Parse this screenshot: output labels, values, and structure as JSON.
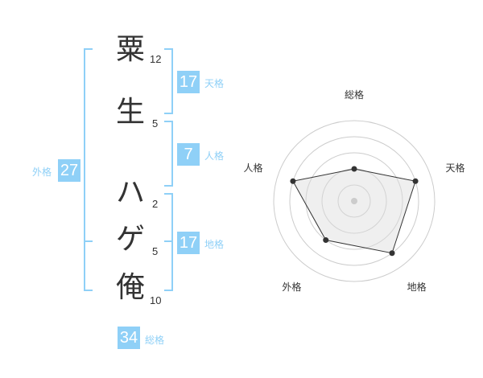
{
  "name": {
    "chars": [
      {
        "char": "粟",
        "strokes": "12"
      },
      {
        "char": "生",
        "strokes": "5"
      },
      {
        "char": "ハ",
        "strokes": "2"
      },
      {
        "char": "ゲ",
        "strokes": "5"
      },
      {
        "char": "俺",
        "strokes": "10"
      }
    ]
  },
  "fortunes": {
    "tenkaku": {
      "label": "天格",
      "value": "17"
    },
    "jinkaku": {
      "label": "人格",
      "value": "7"
    },
    "chikaku": {
      "label": "地格",
      "value": "17"
    },
    "gaikaku": {
      "label": "外格",
      "value": "27"
    },
    "soukaku": {
      "label": "総格",
      "value": "34"
    }
  },
  "colors": {
    "accent": "#8fd0f7",
    "text": "#333333"
  },
  "chart_data": {
    "type": "radar",
    "categories": [
      "総格",
      "天格",
      "地格",
      "外格",
      "人格"
    ],
    "values": [
      2,
      4,
      4,
      3,
      4
    ],
    "ylim": [
      0,
      5
    ],
    "grid": true
  }
}
